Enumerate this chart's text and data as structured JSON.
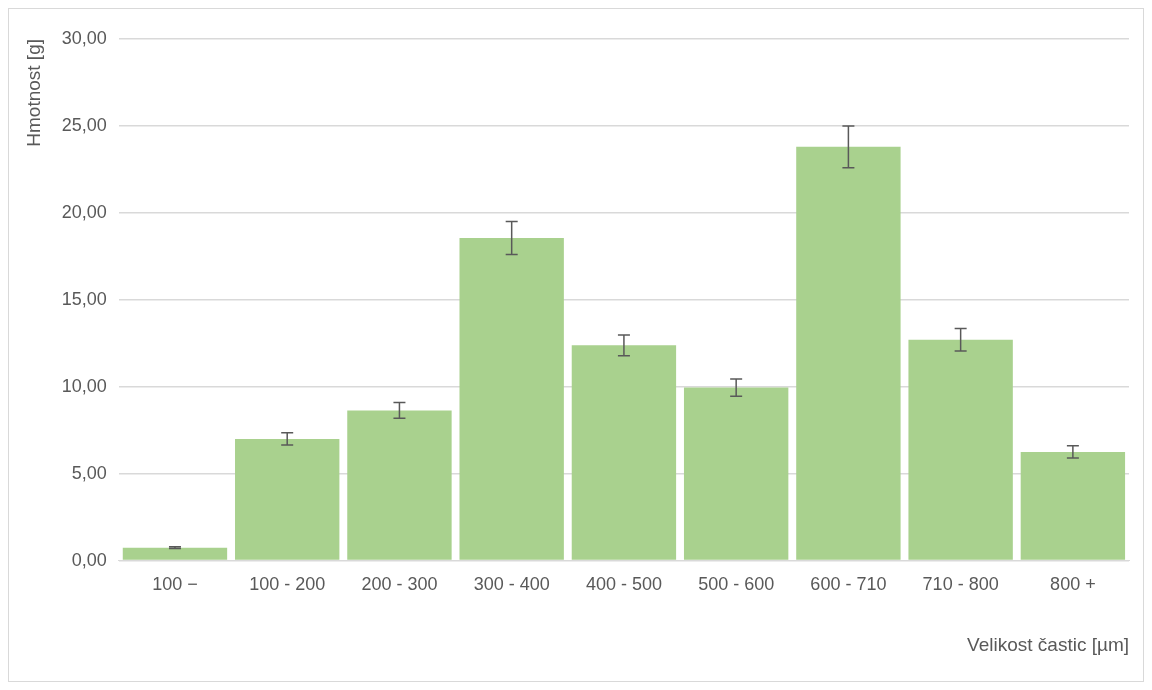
{
  "chart_data": {
    "type": "bar",
    "categories": [
      "100 −",
      "100 - 200",
      "200 - 300",
      "300 - 400",
      "400 - 500",
      "500 - 600",
      "600 - 710",
      "710 - 800",
      "800 +"
    ],
    "values": [
      0.74,
      7.0,
      8.64,
      18.55,
      12.38,
      9.95,
      23.8,
      12.7,
      6.25
    ],
    "errors": [
      0.05,
      0.35,
      0.45,
      0.95,
      0.6,
      0.5,
      1.2,
      0.65,
      0.35
    ],
    "color": "#a9d18e",
    "xlabel": "Velikost častic [µm]",
    "ylabel": "Hmotnost [g]",
    "ylim": [
      0,
      30
    ],
    "yticks": [
      {
        "value": 0,
        "label": "0,00"
      },
      {
        "value": 5,
        "label": "5,00"
      },
      {
        "value": 10,
        "label": "10,00"
      },
      {
        "value": 15,
        "label": "15,00"
      },
      {
        "value": 20,
        "label": "20,00"
      },
      {
        "value": 25,
        "label": "25,00"
      },
      {
        "value": 30,
        "label": "30,00"
      }
    ],
    "grid": "y"
  }
}
